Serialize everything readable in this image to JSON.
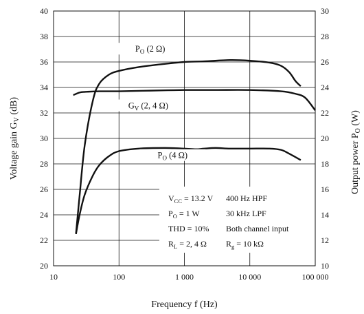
{
  "chart_data": {
    "type": "line",
    "xscale": "log",
    "xlim": [
      10,
      100000
    ],
    "xticks": [
      10,
      100,
      1000,
      10000,
      100000
    ],
    "xtick_labels": [
      "10",
      "100",
      "1 000",
      "10 000",
      "100 000"
    ],
    "xlabel": "Frequency  f  (Hz)",
    "y_left": {
      "label_main": "Voltage gain  G",
      "label_sub": "V",
      "label_unit": "  (dB)",
      "lim": [
        20,
        40
      ],
      "ticks": [
        "20",
        "22",
        "24",
        "26",
        "28",
        "30",
        "32",
        "34",
        "36",
        "38",
        "40"
      ]
    },
    "y_right": {
      "label_main": "Output power  P",
      "label_sub": "O",
      "label_unit": "  (W)",
      "lim": [
        10,
        30
      ],
      "ticks": [
        "10",
        "12",
        "14",
        "16",
        "18",
        "20",
        "22",
        "24",
        "26",
        "28",
        "30"
      ]
    },
    "grid": true,
    "series": [
      {
        "name_main": "P",
        "name_sub": "O",
        "name_rest": " (2 Ω)",
        "axis": "right",
        "x": [
          22,
          25,
          30,
          40,
          50,
          70,
          100,
          200,
          500,
          1000,
          2000,
          5000,
          10000,
          20000,
          30000,
          40000,
          50000,
          60000
        ],
        "y": [
          12.5,
          15.5,
          19.5,
          23.0,
          24.3,
          25.0,
          25.3,
          25.6,
          25.85,
          26.0,
          26.05,
          26.15,
          26.1,
          25.95,
          25.7,
          25.2,
          24.5,
          24.1
        ]
      },
      {
        "name_main": "G",
        "name_sub": "V",
        "name_rest": " (2, 4 Ω)",
        "axis": "left",
        "x": [
          20,
          25,
          30,
          50,
          100,
          300,
          1000,
          3000,
          10000,
          30000,
          50000,
          70000,
          100000
        ],
        "y": [
          33.4,
          33.6,
          33.65,
          33.7,
          33.7,
          33.75,
          33.8,
          33.8,
          33.8,
          33.7,
          33.5,
          33.2,
          32.2
        ]
      },
      {
        "name_main": "P",
        "name_sub": "O",
        "name_rest": " (4 Ω)",
        "axis": "right",
        "x": [
          22,
          25,
          30,
          40,
          50,
          70,
          100,
          200,
          500,
          1000,
          1500,
          2000,
          3000,
          5000,
          10000,
          20000,
          30000,
          40000,
          60000
        ],
        "y": [
          12.5,
          14.0,
          15.6,
          17.1,
          17.9,
          18.6,
          19.0,
          19.2,
          19.25,
          19.2,
          19.15,
          19.2,
          19.25,
          19.2,
          19.2,
          19.2,
          19.1,
          18.8,
          18.3
        ]
      }
    ],
    "curve_labels": [
      {
        "series": 0,
        "at_x": 300,
        "at_y_left": 36.8
      },
      {
        "series": 1,
        "at_x": 280,
        "at_y_left": 32.35
      },
      {
        "series": 2,
        "at_x": 660,
        "at_y_left": 28.45
      }
    ],
    "conditions": [
      {
        "main": "V",
        "sub": "CC",
        "rest": " = 13.2 V"
      },
      {
        "main": "P",
        "sub": "O",
        "rest": " = 1 W"
      },
      {
        "main": "THD",
        "sub": "",
        "rest": " = 10%"
      },
      {
        "main": "R",
        "sub": "L",
        "rest": " = 2, 4 Ω"
      }
    ],
    "conditions_right": [
      {
        "main": "400 Hz HPF",
        "sub": "",
        "rest": ""
      },
      {
        "main": "30 kHz LPF",
        "sub": "",
        "rest": ""
      },
      {
        "main": "Both channel input",
        "sub": "",
        "rest": ""
      },
      {
        "main": "R",
        "sub": "g",
        "rest": " = 10 kΩ"
      }
    ]
  }
}
